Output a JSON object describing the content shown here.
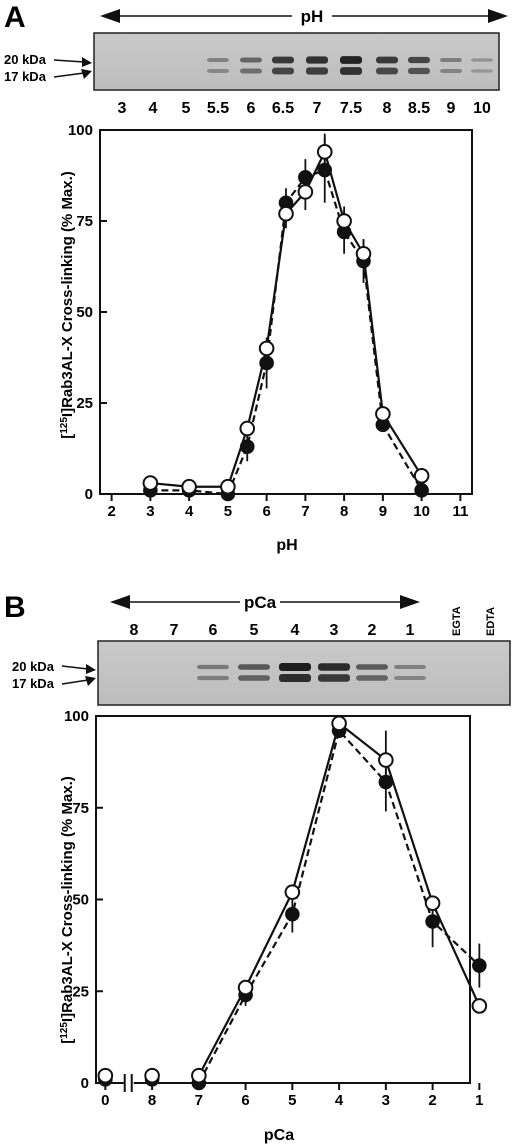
{
  "panels": [
    {
      "letter": "A",
      "header": "pH",
      "gel": {
        "markers": [
          "20 kDa",
          "17 kDa"
        ],
        "lanes": [
          "3",
          "4",
          "5",
          "5.5",
          "6",
          "6.5",
          "7",
          "7.5",
          "8",
          "8.5",
          "9",
          "10"
        ],
        "controls": []
      },
      "chart_data": {
        "type": "line",
        "xlabel": "pH",
        "ylabel_sup": "125",
        "ylabel_main": "I]Rab3AL-X Cross-linking (% Max.)",
        "xlim": [
          1.7,
          11.3
        ],
        "ylim": [
          0,
          100
        ],
        "xticks": [
          {
            "v": 2,
            "label": "2"
          },
          {
            "v": 3,
            "label": "3"
          },
          {
            "v": 4,
            "label": "4"
          },
          {
            "v": 5,
            "label": "5"
          },
          {
            "v": 6,
            "label": "6"
          },
          {
            "v": 7,
            "label": "7"
          },
          {
            "v": 8,
            "label": "8"
          },
          {
            "v": 9,
            "label": "9"
          },
          {
            "v": 10,
            "label": "10"
          },
          {
            "v": 11,
            "label": "11"
          }
        ],
        "yticks": [
          {
            "v": 0,
            "label": "0"
          },
          {
            "v": 25,
            "label": "25"
          },
          {
            "v": 50,
            "label": "50"
          },
          {
            "v": 75,
            "label": "75"
          },
          {
            "v": 100,
            "label": "100"
          }
        ],
        "series": [
          {
            "marker": "open",
            "line": "solid",
            "x": [
              3,
              4,
              5,
              5.5,
              6,
              6.5,
              7,
              7.5,
              8,
              8.5,
              9,
              10
            ],
            "y": [
              3,
              2,
              2,
              18,
              40,
              77,
              83,
              94,
              75,
              66,
              22,
              5
            ],
            "err": [
              0,
              0,
              0,
              0,
              0,
              4,
              5,
              5,
              4,
              4,
              0,
              0
            ]
          },
          {
            "marker": "filled",
            "line": "dashed",
            "x": [
              3,
              4,
              5,
              5.5,
              6,
              6.5,
              7,
              7.5,
              8,
              8.5,
              9,
              10
            ],
            "y": [
              1,
              1,
              0,
              13,
              36,
              80,
              87,
              89,
              72,
              64,
              19,
              1
            ],
            "err": [
              0,
              0,
              0,
              4,
              7,
              4,
              5,
              9,
              6,
              6,
              0,
              0
            ]
          }
        ]
      }
    },
    {
      "letter": "B",
      "header": "pCa",
      "gel": {
        "markers": [
          "20 kDa",
          "17 kDa"
        ],
        "lanes": [
          "8",
          "7",
          "6",
          "5",
          "4",
          "3",
          "2",
          "1"
        ],
        "controls": [
          "EGTA",
          "EDTA"
        ]
      },
      "chart_data": {
        "type": "line",
        "xlabel": "pCa",
        "ylabel_sup": "125",
        "ylabel_main": "I]Rab3AL-X Cross-linking (% Max.)",
        "xlim": [
          0,
          10
        ],
        "ylim": [
          0,
          100
        ],
        "axis_break": true,
        "xticks": [
          {
            "v": 0.25,
            "label": "0"
          },
          {
            "v": 1.5,
            "label": "8"
          },
          {
            "v": 2.75,
            "label": "7"
          },
          {
            "v": 4,
            "label": "6"
          },
          {
            "v": 5.25,
            "label": "5"
          },
          {
            "v": 6.5,
            "label": "4"
          },
          {
            "v": 7.75,
            "label": "3"
          },
          {
            "v": 9,
            "label": "2"
          },
          {
            "v": 10.25,
            "label": "1"
          }
        ],
        "yticks": [
          {
            "v": 0,
            "label": "0"
          },
          {
            "v": 25,
            "label": "25"
          },
          {
            "v": 50,
            "label": "50"
          },
          {
            "v": 75,
            "label": "75"
          },
          {
            "v": 100,
            "label": "100"
          }
        ],
        "series": [
          {
            "marker": "open",
            "line": "solid",
            "x": [
              0.25,
              1.5,
              2.75,
              4,
              5.25,
              6.5,
              7.75,
              9,
              10.25
            ],
            "y": [
              2,
              2,
              2,
              26,
              52,
              98,
              88,
              49,
              21
            ],
            "err": [
              0,
              0,
              0,
              0,
              0,
              0,
              8,
              0,
              0
            ],
            "connect_from": 2
          },
          {
            "marker": "filled",
            "line": "dashed",
            "x": [
              0.25,
              1.5,
              2.75,
              4,
              5.25,
              6.5,
              7.75,
              9,
              10.25
            ],
            "y": [
              1,
              1,
              0,
              24,
              46,
              96,
              82,
              44,
              32
            ],
            "err": [
              0,
              0,
              0,
              3,
              5,
              0,
              8,
              7,
              6
            ],
            "connect_from": 2
          }
        ]
      }
    }
  ]
}
